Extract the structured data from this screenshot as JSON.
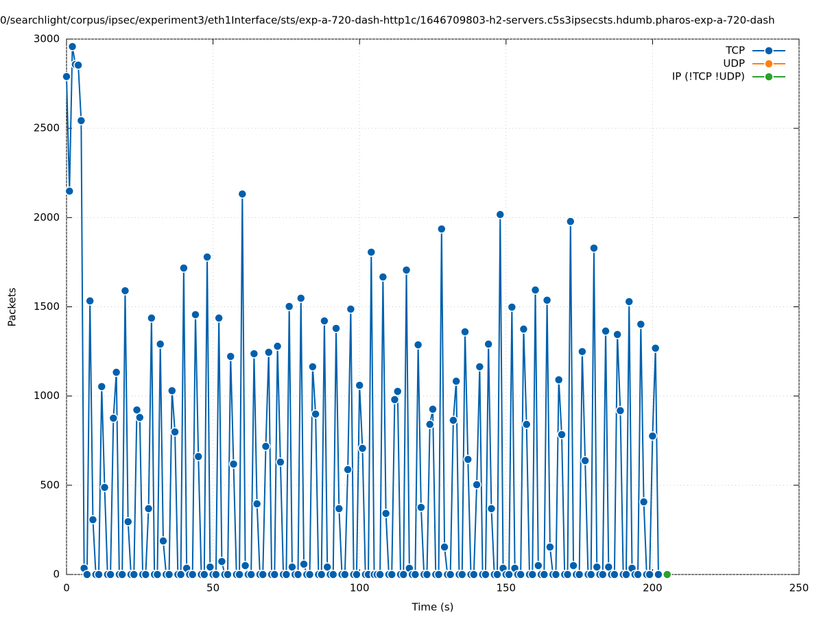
{
  "chart_data": {
    "type": "line",
    "title": "0/searchlight/corpus/ipsec/experiment3/eth1Interface/sts/exp-a-720-dash-http1c/1646709803-h2-servers.c5s3ipsecsts.hdumb.pharos-exp-a-720-dash",
    "xlabel": "Time (s)",
    "ylabel": "Packets",
    "xlim": [
      0,
      250
    ],
    "xticks": [
      0,
      50,
      100,
      150,
      200,
      250
    ],
    "ylim": [
      0,
      3000
    ],
    "yticks": [
      0,
      500,
      1000,
      1500,
      2000,
      2500,
      3000
    ],
    "grid": true,
    "legend": "top-right",
    "series": [
      {
        "name": "TCP",
        "color": "#0060ad",
        "x": [
          0,
          1,
          2,
          3,
          4,
          5,
          6,
          7,
          8,
          9,
          10,
          11,
          12,
          13,
          14,
          15,
          16,
          17,
          18,
          19,
          20,
          21,
          22,
          23,
          24,
          25,
          26,
          27,
          28,
          29,
          30,
          31,
          32,
          33,
          34,
          35,
          36,
          37,
          38,
          39,
          40,
          41,
          42,
          43,
          44,
          45,
          46,
          47,
          48,
          49,
          50,
          51,
          52,
          53,
          54,
          55,
          56,
          57,
          58,
          59,
          60,
          61,
          62,
          63,
          64,
          65,
          66,
          67,
          68,
          69,
          70,
          71,
          72,
          73,
          74,
          75,
          76,
          77,
          78,
          79,
          80,
          81,
          82,
          83,
          84,
          85,
          86,
          87,
          88,
          89,
          90,
          91,
          92,
          93,
          94,
          95,
          96,
          97,
          98,
          99,
          100,
          101,
          102,
          103,
          104,
          105,
          106,
          107,
          108,
          109,
          110,
          111,
          112,
          113,
          114,
          115,
          116,
          117,
          118,
          119,
          120,
          121,
          122,
          123,
          124,
          125,
          126,
          127,
          128,
          129,
          130,
          131,
          132,
          133,
          134,
          135,
          136,
          137,
          138,
          139,
          140,
          141,
          142,
          143,
          144,
          145,
          146,
          147,
          148,
          149,
          150,
          151,
          152,
          153,
          154,
          155,
          156,
          157,
          158,
          159,
          160,
          161,
          162,
          163,
          164,
          165,
          166,
          167,
          168,
          169,
          170,
          171,
          172,
          173,
          174,
          175,
          176,
          177,
          178,
          179,
          180,
          181,
          182,
          183,
          184,
          185,
          186,
          187,
          188,
          189,
          190,
          191,
          192,
          193,
          194,
          195,
          196,
          197,
          198,
          199,
          200,
          201,
          202
        ],
        "values": [
          2790,
          2148,
          2958,
          2858,
          2854,
          2543,
          35,
          0,
          1533,
          307,
          0,
          0,
          1053,
          488,
          0,
          0,
          876,
          1133,
          0,
          0,
          1590,
          296,
          0,
          0,
          922,
          880,
          0,
          0,
          369,
          1437,
          0,
          0,
          1291,
          188,
          0,
          0,
          1030,
          799,
          0,
          0,
          1717,
          35,
          0,
          0,
          1456,
          661,
          0,
          0,
          1779,
          42,
          0,
          0,
          1437,
          73,
          0,
          0,
          1222,
          619,
          0,
          0,
          2132,
          50,
          0,
          0,
          1237,
          396,
          0,
          0,
          718,
          1245,
          0,
          0,
          1279,
          630,
          0,
          0,
          1502,
          42,
          0,
          0,
          1548,
          58,
          0,
          0,
          1164,
          899,
          0,
          0,
          1421,
          42,
          0,
          0,
          1379,
          369,
          0,
          0,
          588,
          1487,
          0,
          0,
          1060,
          707,
          0,
          0,
          1806,
          0,
          0,
          0,
          1667,
          342,
          0,
          0,
          980,
          1026,
          0,
          0,
          1706,
          35,
          0,
          0,
          1287,
          376,
          0,
          0,
          841,
          926,
          0,
          0,
          1936,
          154,
          0,
          0,
          864,
          1083,
          0,
          0,
          1360,
          645,
          0,
          0,
          503,
          1164,
          0,
          0,
          1291,
          369,
          0,
          0,
          2017,
          35,
          0,
          0,
          1498,
          35,
          0,
          0,
          1375,
          841,
          0,
          0,
          1594,
          50,
          0,
          0,
          1537,
          154,
          0,
          0,
          1091,
          784,
          0,
          0,
          1978,
          50,
          0,
          0,
          1249,
          638,
          0,
          0,
          1829,
          42,
          0,
          0,
          1364,
          42,
          0,
          0,
          1345,
          918,
          0,
          0,
          1529,
          35,
          0,
          0,
          1402,
          407,
          0,
          0,
          776,
          1268,
          0
        ]
      },
      {
        "name": "UDP",
        "color": "#ff7f0e",
        "x": [],
        "values": []
      },
      {
        "name": "IP (!TCP  !UDP)",
        "color": "#2ca02c",
        "x": [
          205
        ],
        "values": [
          0
        ]
      }
    ]
  }
}
